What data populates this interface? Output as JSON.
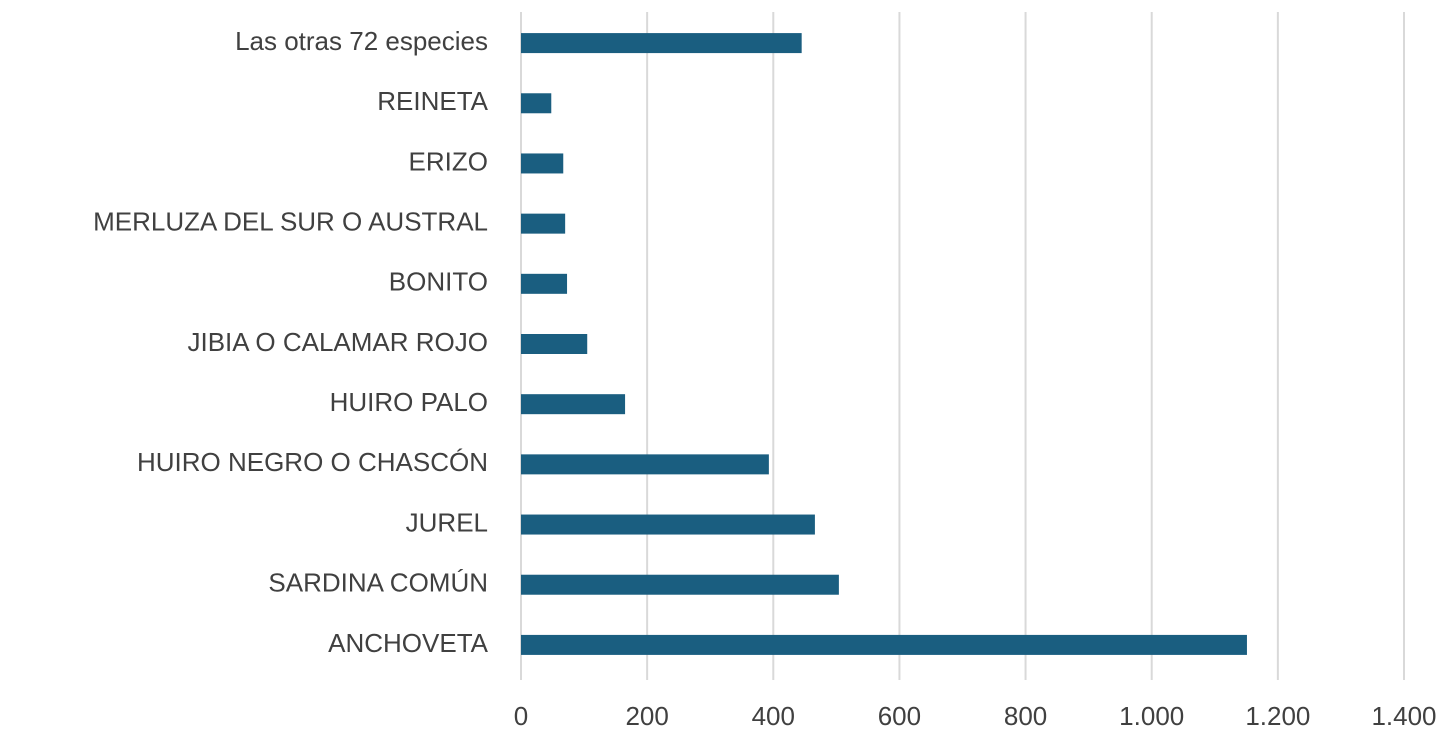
{
  "chart_data": {
    "type": "bar",
    "orientation": "horizontal",
    "categories": [
      "Las otras 72 especies",
      "REINETA",
      "ERIZO",
      "MERLUZA DEL SUR O AUSTRAL",
      "BONITO",
      "JIBIA O CALAMAR ROJO",
      "HUIRO PALO",
      "HUIRO NEGRO O CHASCÓN",
      "JUREL",
      "SARDINA COMÚN",
      "ANCHOVETA"
    ],
    "values": [
      445,
      48,
      67,
      70,
      73,
      105,
      165,
      393,
      466,
      504,
      1151
    ],
    "color": "#1a5e80",
    "xlim": [
      0,
      1400
    ],
    "xticks": [
      0,
      200,
      400,
      600,
      800,
      {
        "value": 1000,
        "label": "1.000"
      },
      {
        "value": 1200,
        "label": "1.200"
      },
      {
        "value": 1400,
        "label": "1.400"
      }
    ],
    "grid": true
  }
}
